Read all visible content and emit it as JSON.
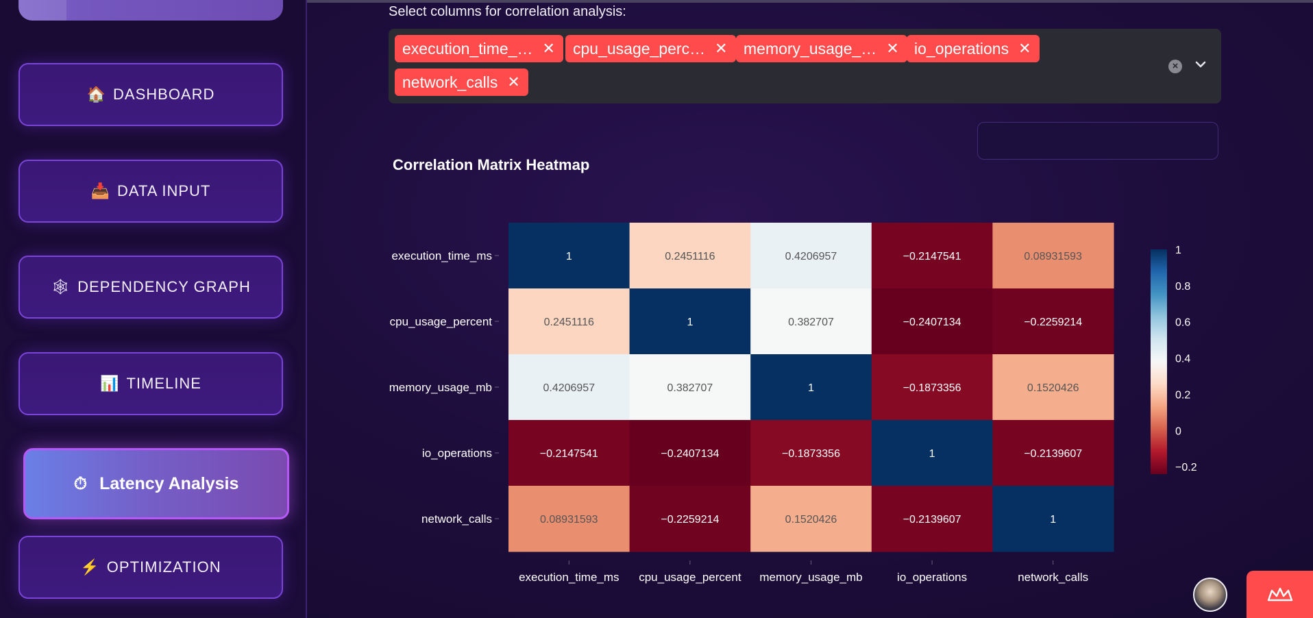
{
  "sidebar": {
    "items": [
      {
        "icon": "🏠",
        "icon_name": "house-icon",
        "label": "DASHBOARD"
      },
      {
        "icon": "📥",
        "icon_name": "inbox-tray-icon",
        "label": "DATA INPUT"
      },
      {
        "icon": "🕸",
        "icon_name": "spider-web-icon",
        "label": "DEPENDENCY GRAPH"
      },
      {
        "icon": "📊",
        "icon_name": "bar-chart-icon",
        "label": "TIMELINE"
      },
      {
        "icon": "⏱",
        "icon_name": "stopwatch-icon",
        "label": "Latency Analysis",
        "active": true
      },
      {
        "icon": "⚡",
        "icon_name": "lightning-icon",
        "label": "OPTIMIZATION"
      }
    ]
  },
  "columns_select": {
    "label": "Select columns for correlation analysis:",
    "chips": [
      "execution_time_…",
      "cpu_usage_perc…",
      "memory_usage_…",
      "io_operations",
      "network_calls"
    ]
  },
  "colors": {
    "chip": "#ff4b4b",
    "accent_purple": "#b558f5",
    "heat_high": "#053061",
    "heat_mid": "#f7f7f7",
    "heat_low": "#67001f"
  },
  "chart_data": {
    "type": "heatmap",
    "title": "Correlation Matrix Heatmap",
    "rows": [
      "execution_time_ms",
      "cpu_usage_percent",
      "memory_usage_mb",
      "io_operations",
      "network_calls"
    ],
    "columns": [
      "execution_time_ms",
      "cpu_usage_percent",
      "memory_usage_mb",
      "io_operations",
      "network_calls"
    ],
    "values": [
      [
        1,
        0.2451116,
        0.4206957,
        -0.2147541,
        0.08931593
      ],
      [
        0.2451116,
        1,
        0.382707,
        -0.2407134,
        -0.2259214
      ],
      [
        0.4206957,
        0.382707,
        1,
        -0.1873356,
        0.1520426
      ],
      [
        -0.2147541,
        -0.2407134,
        -0.1873356,
        1,
        -0.2139607
      ],
      [
        0.08931593,
        -0.2259214,
        0.1520426,
        -0.2139607,
        1
      ]
    ],
    "cell_labels": [
      [
        "1",
        "0.2451116",
        "0.4206957",
        "−0.2147541",
        "0.08931593"
      ],
      [
        "0.2451116",
        "1",
        "0.382707",
        "−0.2407134",
        "−0.2259214"
      ],
      [
        "0.4206957",
        "0.382707",
        "1",
        "−0.1873356",
        "0.1520426"
      ],
      [
        "−0.2147541",
        "−0.2407134",
        "−0.1873356",
        "1",
        "−0.2139607"
      ],
      [
        "0.08931593",
        "−0.2259214",
        "0.1520426",
        "−0.2139607",
        "1"
      ]
    ],
    "colorscale": "RdBu",
    "zrange": [
      -0.2407134,
      1
    ],
    "colorbar_ticks": [
      1,
      0.8,
      0.6,
      0.4,
      0.2,
      0,
      -0.2
    ],
    "colorbar_tick_labels": [
      "1",
      "0.8",
      "0.6",
      "0.4",
      "0.2",
      "0",
      "−0.2"
    ]
  }
}
